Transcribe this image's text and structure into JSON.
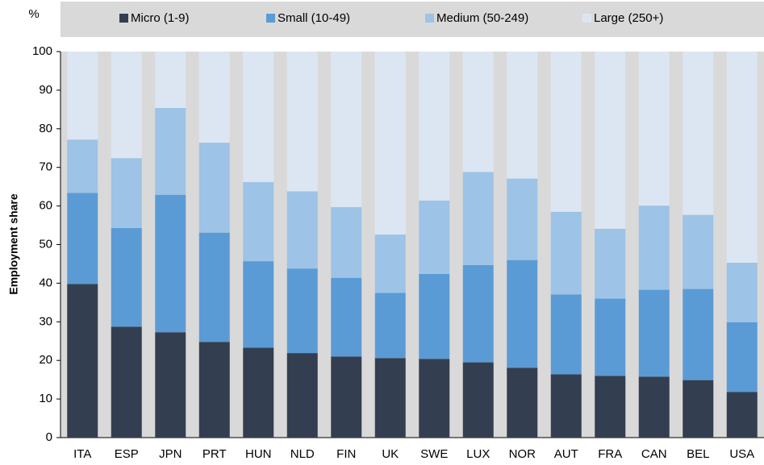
{
  "chart_data": {
    "type": "stacked_bar",
    "unit_label": "%",
    "y_axis_label": "Employment share",
    "categories": [
      "ITA",
      "ESP",
      "JPN",
      "PRT",
      "HUN",
      "NLD",
      "FIN",
      "UK",
      "SWE",
      "LUX",
      "NOR",
      "AUT",
      "FRA",
      "CAN",
      "BEL",
      "USA"
    ],
    "series": [
      {
        "name": "Micro (1-9)",
        "color": "#333f50",
        "values": [
          39.8,
          28.7,
          27.3,
          24.8,
          23.3,
          21.9,
          21.0,
          20.6,
          20.4,
          19.5,
          18.1,
          16.4,
          16.0,
          15.8,
          14.9,
          11.8
        ]
      },
      {
        "name": "Small (10-49)",
        "color": "#5b9bd5",
        "values": [
          23.6,
          25.6,
          35.6,
          28.3,
          22.4,
          21.9,
          20.4,
          16.9,
          22.0,
          25.2,
          27.9,
          20.7,
          20.0,
          22.5,
          23.6,
          18.1
        ]
      },
      {
        "name": "Medium (50-249)",
        "color": "#9dc3e6",
        "values": [
          13.8,
          18.1,
          22.5,
          23.3,
          20.5,
          20.0,
          18.3,
          15.1,
          19.0,
          24.1,
          21.1,
          21.4,
          18.1,
          21.8,
          19.2,
          15.4
        ]
      },
      {
        "name": "Large (250+)",
        "color": "#dce6f2",
        "values": [
          22.8,
          27.6,
          14.6,
          23.6,
          33.8,
          36.2,
          40.3,
          47.4,
          38.6,
          31.2,
          32.9,
          41.5,
          45.9,
          39.9,
          42.3,
          54.7
        ]
      }
    ],
    "ylim": [
      0,
      100
    ],
    "yticks": [
      0,
      10,
      20,
      30,
      40,
      50,
      60,
      70,
      80,
      90,
      100
    ],
    "legend": "top",
    "background": "#d9d9d9"
  }
}
